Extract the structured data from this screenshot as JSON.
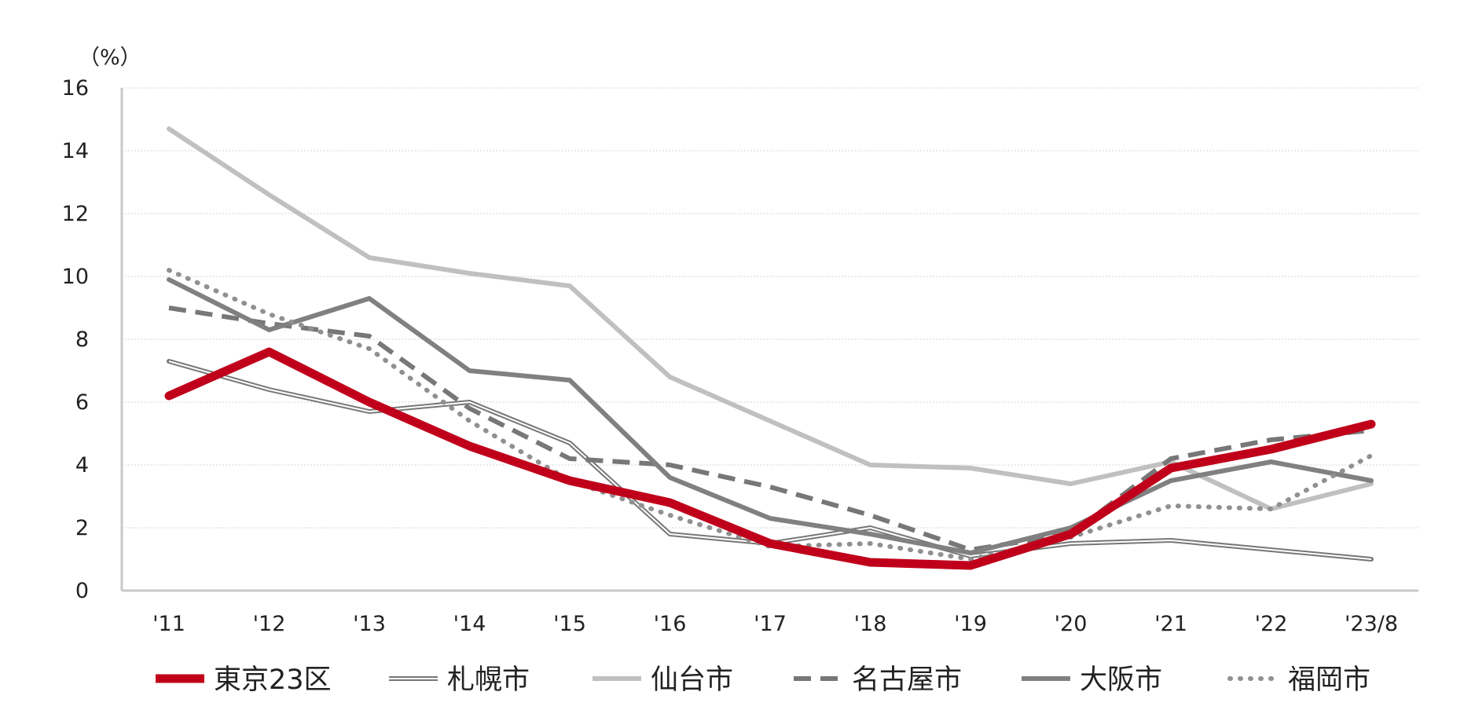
{
  "chart_data": {
    "type": "line",
    "unit_label": "（%）",
    "x": [
      "'11",
      "'12",
      "'13",
      "'14",
      "'15",
      "'16",
      "'17",
      "'18",
      "'19",
      "'20",
      "'21",
      "'22",
      "'23/8"
    ],
    "y_ticks": [
      "0",
      "2",
      "4",
      "6",
      "8",
      "10",
      "12",
      "14",
      "16"
    ],
    "ylim": [
      0,
      16
    ],
    "grid": true,
    "legend_position": "bottom",
    "series": [
      {
        "name": "札幌市",
        "color": "#777777",
        "style": "double",
        "values": [
          7.3,
          6.4,
          5.7,
          6.0,
          4.7,
          1.8,
          1.5,
          2.0,
          1.1,
          1.5,
          1.6,
          1.3,
          1.0
        ]
      },
      {
        "name": "仙台市",
        "color": "#c0c0c0",
        "style": "solid-light",
        "values": [
          14.7,
          12.6,
          10.6,
          10.1,
          9.7,
          6.8,
          5.4,
          4.0,
          3.9,
          3.4,
          4.1,
          2.6,
          3.4
        ]
      },
      {
        "name": "名古屋市",
        "color": "#777777",
        "style": "dashed",
        "values": [
          9.0,
          8.5,
          8.1,
          5.8,
          4.2,
          4.0,
          3.3,
          2.4,
          1.3,
          1.8,
          4.2,
          4.8,
          5.1
        ]
      },
      {
        "name": "大阪市",
        "color": "#808080",
        "style": "solid",
        "values": [
          9.9,
          8.3,
          9.3,
          7.0,
          6.7,
          3.6,
          2.3,
          1.8,
          1.2,
          2.0,
          3.5,
          4.1,
          3.5
        ]
      },
      {
        "name": "福岡市",
        "color": "#909090",
        "style": "dotted",
        "values": [
          10.2,
          8.8,
          7.7,
          5.4,
          3.5,
          2.4,
          1.4,
          1.5,
          1.0,
          1.7,
          2.7,
          2.6,
          4.3
        ]
      },
      {
        "name": "東京23区",
        "color": "#c0001a",
        "style": "bold",
        "values": [
          6.2,
          7.6,
          6.0,
          4.6,
          3.5,
          2.8,
          1.5,
          0.9,
          0.8,
          1.8,
          3.9,
          4.5,
          5.3
        ]
      }
    ],
    "legend_order": [
      "東京23区",
      "札幌市",
      "仙台市",
      "名古屋市",
      "大阪市",
      "福岡市"
    ]
  }
}
